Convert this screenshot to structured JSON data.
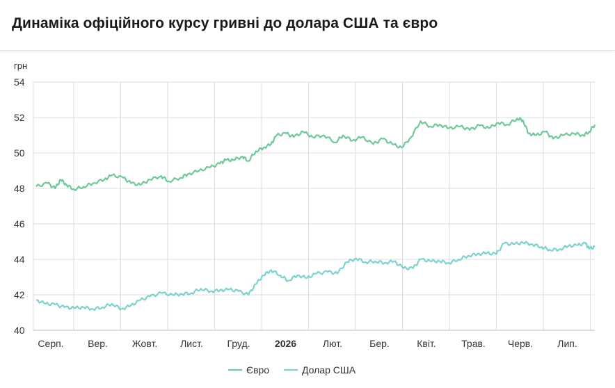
{
  "header": {
    "title": "Динаміка офіційного курсу гривні до долара США та євро"
  },
  "chart_data": {
    "type": "line",
    "title": "Динаміка офіційного курсу гривні до долара США та євро",
    "ylabel": "грн",
    "ylim": [
      40,
      54
    ],
    "yticks": [
      40,
      42,
      44,
      46,
      48,
      50,
      52,
      54
    ],
    "x_tick_labels": [
      "Серп.",
      "Вер.",
      "Жовт.",
      "Лист.",
      "Груд.",
      "2026",
      "Лют.",
      "Бер.",
      "Квіт.",
      "Трав.",
      "Черв.",
      "Лип."
    ],
    "x_tick_bold": [
      false,
      false,
      false,
      false,
      false,
      true,
      false,
      false,
      false,
      false,
      false,
      false
    ],
    "x_period_count": 12.2,
    "grid": true,
    "legend_position": "bottom",
    "series": [
      {
        "name": "Євро",
        "color": "#6fc89a",
        "points": [
          [
            0,
            48.1
          ],
          [
            0.3,
            48.3
          ],
          [
            0.5,
            48.0
          ],
          [
            0.65,
            48.5
          ],
          [
            0.8,
            48.2
          ],
          [
            1.0,
            47.95
          ],
          [
            1.25,
            48.1
          ],
          [
            1.5,
            48.3
          ],
          [
            1.8,
            48.5
          ],
          [
            2.0,
            48.75
          ],
          [
            2.3,
            48.6
          ],
          [
            2.5,
            48.3
          ],
          [
            2.75,
            48.2
          ],
          [
            3.0,
            48.5
          ],
          [
            3.3,
            48.7
          ],
          [
            3.5,
            48.4
          ],
          [
            3.8,
            48.6
          ],
          [
            4.0,
            48.8
          ],
          [
            4.3,
            49.0
          ],
          [
            4.6,
            49.2
          ],
          [
            4.85,
            49.4
          ],
          [
            5.0,
            49.6
          ],
          [
            5.2,
            49.6
          ],
          [
            5.45,
            49.8
          ],
          [
            5.6,
            49.55
          ],
          [
            5.8,
            50.1
          ],
          [
            6.0,
            50.3
          ],
          [
            6.2,
            50.5
          ],
          [
            6.35,
            51.0
          ],
          [
            6.6,
            51.1
          ],
          [
            6.8,
            50.9
          ],
          [
            7.05,
            51.2
          ],
          [
            7.3,
            50.9
          ],
          [
            7.6,
            51.0
          ],
          [
            7.9,
            50.6
          ],
          [
            8.1,
            51.0
          ],
          [
            8.35,
            50.7
          ],
          [
            8.6,
            50.9
          ],
          [
            8.9,
            50.5
          ],
          [
            9.15,
            50.8
          ],
          [
            9.4,
            50.5
          ],
          [
            9.65,
            50.3
          ],
          [
            9.9,
            50.9
          ],
          [
            10.15,
            51.8
          ],
          [
            10.4,
            51.5
          ],
          [
            10.65,
            51.6
          ],
          [
            10.9,
            51.4
          ],
          [
            11.2,
            51.5
          ],
          [
            11.45,
            51.3
          ],
          [
            11.7,
            51.55
          ],
          [
            11.95,
            51.4
          ],
          [
            12.2,
            51.7
          ],
          [
            12.45,
            51.6
          ],
          [
            12.7,
            51.95
          ],
          [
            12.85,
            51.85
          ],
          [
            13.0,
            51.1
          ],
          [
            13.2,
            51.0
          ],
          [
            13.45,
            51.2
          ],
          [
            13.65,
            50.8
          ],
          [
            13.9,
            51.0
          ],
          [
            14.2,
            51.1
          ],
          [
            14.45,
            51.0
          ],
          [
            14.6,
            51.2
          ],
          [
            14.75,
            51.6
          ]
        ]
      },
      {
        "name": "Долар США",
        "color": "#7bd3cc",
        "points": [
          [
            0,
            41.7
          ],
          [
            0.25,
            41.5
          ],
          [
            0.5,
            41.45
          ],
          [
            0.75,
            41.3
          ],
          [
            1.0,
            41.25
          ],
          [
            1.25,
            41.3
          ],
          [
            1.5,
            41.2
          ],
          [
            1.75,
            41.3
          ],
          [
            2.0,
            41.5
          ],
          [
            2.25,
            41.2
          ],
          [
            2.5,
            41.4
          ],
          [
            2.75,
            41.7
          ],
          [
            3.0,
            41.9
          ],
          [
            3.3,
            42.1
          ],
          [
            3.6,
            42.0
          ],
          [
            3.85,
            42.05
          ],
          [
            4.1,
            42.1
          ],
          [
            4.35,
            42.35
          ],
          [
            4.6,
            42.2
          ],
          [
            4.85,
            42.25
          ],
          [
            5.1,
            42.3
          ],
          [
            5.35,
            42.2
          ],
          [
            5.6,
            42.0
          ],
          [
            5.8,
            42.6
          ],
          [
            6.0,
            43.1
          ],
          [
            6.2,
            43.4
          ],
          [
            6.45,
            43.1
          ],
          [
            6.65,
            42.8
          ],
          [
            6.9,
            43.1
          ],
          [
            7.15,
            42.95
          ],
          [
            7.4,
            43.2
          ],
          [
            7.7,
            43.3
          ],
          [
            7.95,
            43.2
          ],
          [
            8.2,
            43.85
          ],
          [
            8.45,
            44.05
          ],
          [
            8.7,
            43.85
          ],
          [
            8.95,
            43.9
          ],
          [
            9.2,
            43.8
          ],
          [
            9.45,
            43.9
          ],
          [
            9.7,
            43.5
          ],
          [
            9.95,
            43.5
          ],
          [
            10.15,
            44.0
          ],
          [
            10.4,
            43.9
          ],
          [
            10.65,
            43.9
          ],
          [
            10.9,
            43.8
          ],
          [
            11.15,
            44.0
          ],
          [
            11.4,
            44.2
          ],
          [
            11.65,
            44.3
          ],
          [
            11.9,
            44.35
          ],
          [
            12.15,
            44.3
          ],
          [
            12.35,
            44.9
          ],
          [
            12.6,
            44.85
          ],
          [
            12.85,
            44.95
          ],
          [
            13.1,
            44.85
          ],
          [
            13.35,
            44.7
          ],
          [
            13.55,
            44.55
          ],
          [
            13.8,
            44.55
          ],
          [
            14.05,
            44.75
          ],
          [
            14.3,
            44.8
          ],
          [
            14.5,
            44.9
          ],
          [
            14.6,
            44.6
          ],
          [
            14.75,
            44.7
          ]
        ]
      }
    ]
  }
}
